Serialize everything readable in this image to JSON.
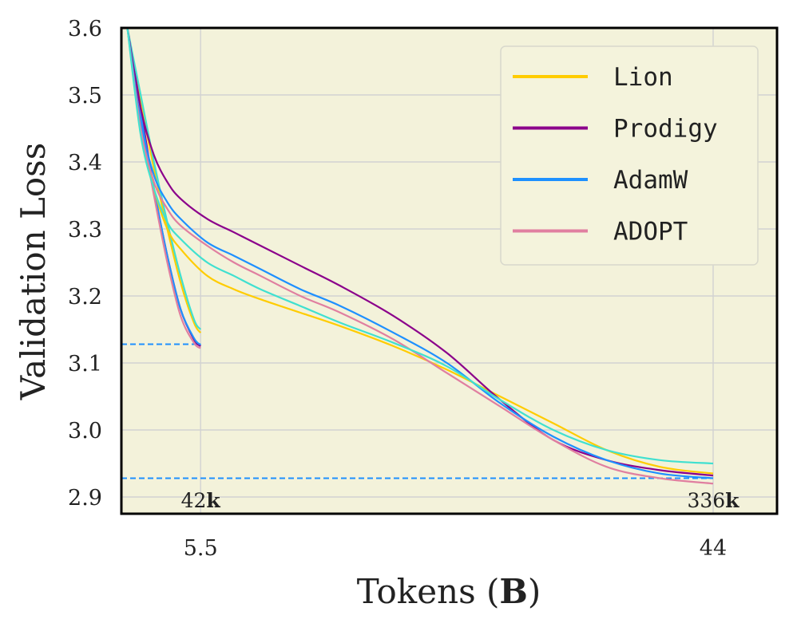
{
  "chart_data": {
    "type": "line",
    "xlabel_prefix": "Tokens (",
    "xlabel_bold": "B",
    "xlabel_suffix": ")",
    "ylabel": "Validation Loss",
    "ylim": [
      2.875,
      3.6
    ],
    "yticks": [
      "2.9",
      "3.0",
      "3.1",
      "3.2",
      "3.3",
      "3.4",
      "3.5",
      "3.6"
    ],
    "xticks": [
      {
        "value": 5.5,
        "label": "5.5"
      },
      {
        "value": 44,
        "label": "44"
      }
    ],
    "grid": true,
    "legend_position": "top-right",
    "background_color": "#f3f2da",
    "annotations": [
      {
        "text_number": "42",
        "text_bold": "k",
        "x": 5.5
      },
      {
        "text_number": "336",
        "text_bold": "k",
        "x": 44
      }
    ],
    "reference_lines": [
      {
        "y": 3.128,
        "x_end": 5.5,
        "color": "#1e90ff"
      },
      {
        "y": 2.928,
        "x_end": 44,
        "color": "#1e90ff"
      }
    ],
    "legend": [
      {
        "name": "Lion",
        "color": "#ffcc00"
      },
      {
        "name": "Prodigy",
        "color": "#8b008b"
      },
      {
        "name": "AdamW",
        "color": "#1e90ff"
      },
      {
        "name": "ADOPT",
        "color": "#e07fa0"
      }
    ],
    "short_runs": [
      {
        "color": "#ffcc00",
        "x": [
          0,
          1,
          2,
          3,
          4,
          5,
          5.5
        ],
        "y": [
          3.6,
          3.49,
          3.39,
          3.3,
          3.22,
          3.16,
          3.145
        ]
      },
      {
        "color": "#8b008b",
        "x": [
          0,
          1,
          2,
          3,
          4,
          5,
          5.5
        ],
        "y": [
          3.6,
          3.48,
          3.36,
          3.26,
          3.18,
          3.135,
          3.125
        ]
      },
      {
        "color": "#1e90ff",
        "x": [
          0,
          1,
          2,
          3,
          4,
          5,
          5.5
        ],
        "y": [
          3.6,
          3.47,
          3.36,
          3.26,
          3.18,
          3.137,
          3.127
        ]
      },
      {
        "color": "#e07fa0",
        "x": [
          0,
          1,
          2,
          3,
          4,
          5,
          5.5
        ],
        "y": [
          3.6,
          3.46,
          3.35,
          3.25,
          3.17,
          3.13,
          3.122
        ]
      },
      {
        "color": "#40e0d0",
        "x": [
          0,
          1,
          2,
          3,
          4,
          5,
          5.5
        ],
        "y": [
          3.6,
          3.5,
          3.4,
          3.31,
          3.23,
          3.165,
          3.15
        ]
      }
    ],
    "series": [
      {
        "name": "Lion",
        "color": "#ffcc00",
        "x": [
          0,
          1,
          2,
          3,
          4,
          6,
          8,
          10,
          13,
          16,
          20,
          24,
          28,
          32,
          36,
          40,
          44
        ],
        "y": [
          3.6,
          3.45,
          3.36,
          3.3,
          3.27,
          3.23,
          3.21,
          3.195,
          3.175,
          3.155,
          3.125,
          3.09,
          3.05,
          3.01,
          2.97,
          2.945,
          2.935
        ]
      },
      {
        "name": "Prodigy",
        "color": "#8b008b",
        "x": [
          0,
          1,
          2,
          3,
          4,
          6,
          8,
          10,
          13,
          16,
          20,
          24,
          28,
          32,
          36,
          40,
          44
        ],
        "y": [
          3.6,
          3.48,
          3.41,
          3.37,
          3.345,
          3.315,
          3.295,
          3.275,
          3.245,
          3.215,
          3.17,
          3.115,
          3.045,
          2.985,
          2.955,
          2.94,
          2.932
        ]
      },
      {
        "name": "AdamW",
        "color": "#1e90ff",
        "x": [
          0,
          1,
          2,
          3,
          4,
          6,
          8,
          10,
          13,
          16,
          20,
          24,
          28,
          32,
          36,
          40,
          44
        ],
        "y": [
          3.6,
          3.46,
          3.38,
          3.34,
          3.315,
          3.28,
          3.26,
          3.24,
          3.21,
          3.185,
          3.145,
          3.1,
          3.04,
          2.99,
          2.955,
          2.935,
          2.928
        ]
      },
      {
        "name": "ADOPT",
        "color": "#e07fa0",
        "x": [
          0,
          1,
          2,
          3,
          4,
          6,
          8,
          10,
          13,
          16,
          20,
          24,
          28,
          32,
          36,
          40,
          44
        ],
        "y": [
          3.6,
          3.45,
          3.37,
          3.33,
          3.305,
          3.275,
          3.25,
          3.23,
          3.2,
          3.175,
          3.135,
          3.085,
          3.035,
          2.985,
          2.945,
          2.928,
          2.92
        ]
      },
      {
        "name": "",
        "color": "#40e0d0",
        "x": [
          0,
          1,
          2,
          3,
          4,
          6,
          8,
          10,
          13,
          16,
          20,
          24,
          28,
          32,
          36,
          40,
          44
        ],
        "y": [
          3.6,
          3.44,
          3.36,
          3.31,
          3.285,
          3.25,
          3.23,
          3.21,
          3.185,
          3.16,
          3.13,
          3.095,
          3.045,
          3.0,
          2.97,
          2.955,
          2.95
        ]
      }
    ]
  }
}
